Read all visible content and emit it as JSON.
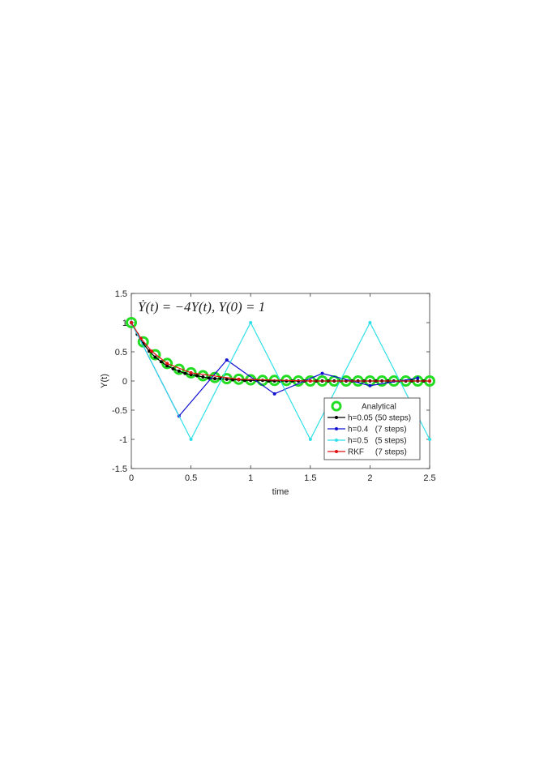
{
  "chart_data": {
    "type": "line",
    "annotation": "Ẏ(t) = −4Y(t), Y(0) = 1",
    "xlabel": "time",
    "ylabel": "Y(t)",
    "xlim": [
      0,
      2.5
    ],
    "ylim": [
      -1.5,
      1.5
    ],
    "xticks": [
      0,
      0.5,
      1,
      1.5,
      2,
      2.5
    ],
    "yticks": [
      -1.5,
      -1,
      -0.5,
      0,
      0.5,
      1,
      1.5
    ],
    "grid": false,
    "legend": "southeast",
    "series": [
      {
        "name": "Analytical",
        "color": "#22dd22",
        "marker": "circle",
        "line": false,
        "x": [
          0,
          0.1,
          0.2,
          0.3,
          0.4,
          0.5,
          0.6,
          0.7,
          0.8,
          0.9,
          1,
          1.1,
          1.2,
          1.3,
          1.4,
          1.5,
          1.6,
          1.7,
          1.8,
          1.9,
          2,
          2.1,
          2.2,
          2.3,
          2.4,
          2.5
        ],
        "values": [
          1,
          0.67,
          0.45,
          0.3,
          0.2,
          0.14,
          0.09,
          0.06,
          0.04,
          0.03,
          0.02,
          0.01,
          0.01,
          0.01,
          0,
          0,
          0,
          0,
          0,
          0,
          0,
          0,
          0,
          0,
          0,
          0
        ]
      },
      {
        "name": "h=0.05 (50 steps)",
        "color": "#000000",
        "marker": "dot",
        "line": true,
        "x": [
          0,
          0.05,
          0.1,
          0.15,
          0.2,
          0.25,
          0.3,
          0.35,
          0.4,
          0.45,
          0.5,
          0.55,
          0.6,
          0.65,
          0.7,
          0.75,
          0.8,
          0.85,
          0.9,
          0.95,
          1,
          1.05,
          1.1,
          1.15,
          1.2,
          1.25,
          1.3,
          1.35,
          1.4,
          1.45,
          1.5,
          1.55,
          1.6,
          1.65,
          1.7,
          1.75,
          1.8,
          1.85,
          1.9,
          1.95,
          2,
          2.05,
          2.1,
          2.15,
          2.2,
          2.25,
          2.3,
          2.35,
          2.4,
          2.45,
          2.5
        ],
        "values": [
          1,
          0.8,
          0.64,
          0.51,
          0.41,
          0.33,
          0.26,
          0.21,
          0.17,
          0.13,
          0.11,
          0.09,
          0.07,
          0.05,
          0.04,
          0.04,
          0.03,
          0.02,
          0.02,
          0.01,
          0.01,
          0.01,
          0.01,
          0,
          0,
          0,
          0,
          0,
          0,
          0,
          0,
          0,
          0,
          0,
          0,
          0,
          0,
          0,
          0,
          0,
          0,
          0,
          0,
          0,
          0,
          0,
          0,
          0,
          0,
          0,
          0
        ]
      },
      {
        "name": "h=0.4   (7 steps)",
        "color": "#1010d0",
        "marker": "dot",
        "line": true,
        "x": [
          0,
          0.4,
          0.8,
          1.2,
          1.6,
          2,
          2.4
        ],
        "values": [
          1,
          -0.6,
          0.36,
          -0.22,
          0.13,
          -0.08,
          0.05
        ]
      },
      {
        "name": "h=0.5   (5 steps)",
        "color": "#30e0e8",
        "marker": "dot",
        "line": true,
        "x": [
          0,
          0.5,
          1,
          1.5,
          2,
          2.5
        ],
        "values": [
          1,
          -1,
          1,
          -1,
          1,
          -1
        ]
      },
      {
        "name": "RKF     (7 steps)",
        "color": "#e01010",
        "marker": "dot",
        "line": true,
        "x": [
          0,
          0.08,
          0.17,
          0.3,
          0.5,
          0.9,
          1.5,
          2.5
        ],
        "values": [
          1,
          0.73,
          0.51,
          0.3,
          0.14,
          0.03,
          0,
          0
        ]
      }
    ]
  }
}
